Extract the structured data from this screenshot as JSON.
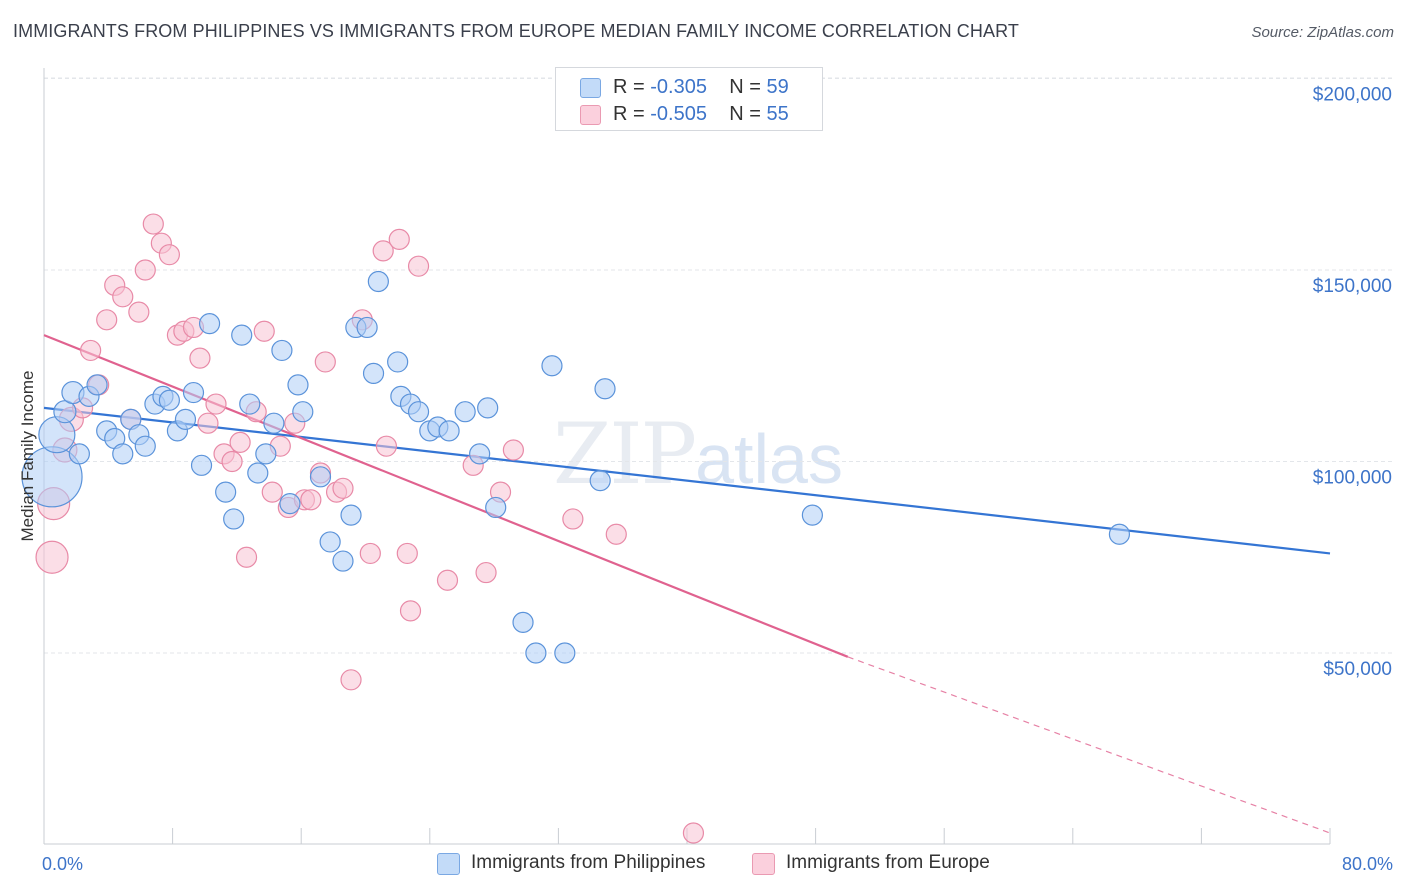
{
  "header": {
    "title": "IMMIGRANTS FROM PHILIPPINES VS IMMIGRANTS FROM EUROPE MEDIAN FAMILY INCOME CORRELATION CHART",
    "source": "Source: ZipAtlas.com"
  },
  "watermark": {
    "zip": "ZIP",
    "atlas": "atlas"
  },
  "legend": {
    "philippines": {
      "r_label": "R = ",
      "r": "-0.305",
      "n_label": "N = ",
      "n": "59"
    },
    "europe": {
      "r_label": "R = ",
      "r": "-0.505",
      "n_label": "N = ",
      "n": "55"
    }
  },
  "colors": {
    "blue_fill": "#aecdf5",
    "blue_stroke": "#5b93da",
    "blue_line": "#3475d4",
    "pink_fill": "#f8c3d3",
    "pink_stroke": "#e88aa7",
    "pink_line": "#e0628f",
    "axis_text": "#3d74c9",
    "grid": "#e3e6ea"
  },
  "chart_data": {
    "type": "scatter",
    "title": "IMMIGRANTS FROM PHILIPPINES VS IMMIGRANTS FROM EUROPE MEDIAN FAMILY INCOME CORRELATION CHART",
    "xlabel": "",
    "ylabel": "Median Family Income",
    "xlim": [
      0,
      80
    ],
    "ylim": [
      0,
      210000
    ],
    "x_tick_labels": [
      "0.0%",
      "80.0%"
    ],
    "y_ticks": [
      50000,
      100000,
      150000,
      200000
    ],
    "y_tick_labels": [
      "$50,000",
      "$100,000",
      "$150,000",
      "$200,000"
    ],
    "grid": "horizontal dashed",
    "legend_position": "top-center and bottom",
    "series": [
      {
        "name": "Immigrants from Philippines",
        "color": "#aecdf5",
        "trend": {
          "x": [
            0,
            80
          ],
          "y": [
            114000,
            76000
          ]
        },
        "points": [
          [
            0.5,
            96000,
            30
          ],
          [
            0.8,
            107000,
            18
          ],
          [
            1.3,
            113000,
            11
          ],
          [
            1.8,
            118000,
            11
          ],
          [
            2.2,
            102000,
            10
          ],
          [
            2.8,
            117000,
            10
          ],
          [
            3.3,
            120000,
            10
          ],
          [
            3.9,
            108000,
            10
          ],
          [
            4.4,
            106000,
            10
          ],
          [
            4.9,
            102000,
            10
          ],
          [
            5.4,
            111000,
            10
          ],
          [
            5.9,
            107000,
            10
          ],
          [
            6.3,
            104000,
            10
          ],
          [
            6.9,
            115000,
            10
          ],
          [
            7.4,
            117000,
            10
          ],
          [
            7.8,
            116000,
            10
          ],
          [
            8.3,
            108000,
            10
          ],
          [
            8.8,
            111000,
            10
          ],
          [
            9.3,
            118000,
            10
          ],
          [
            9.8,
            99000,
            10
          ],
          [
            10.3,
            136000,
            10
          ],
          [
            11.3,
            92000,
            10
          ],
          [
            11.8,
            85000,
            10
          ],
          [
            12.3,
            133000,
            10
          ],
          [
            12.8,
            115000,
            10
          ],
          [
            13.3,
            97000,
            10
          ],
          [
            13.8,
            102000,
            10
          ],
          [
            14.3,
            110000,
            10
          ],
          [
            14.8,
            129000,
            10
          ],
          [
            15.3,
            89000,
            10
          ],
          [
            15.8,
            120000,
            10
          ],
          [
            16.1,
            113000,
            10
          ],
          [
            17.2,
            96000,
            10
          ],
          [
            17.8,
            79000,
            10
          ],
          [
            18.6,
            74000,
            10
          ],
          [
            19.1,
            86000,
            10
          ],
          [
            19.4,
            135000,
            10
          ],
          [
            20.1,
            135000,
            10
          ],
          [
            20.5,
            123000,
            10
          ],
          [
            20.8,
            147000,
            10
          ],
          [
            22.0,
            126000,
            10
          ],
          [
            22.2,
            117000,
            10
          ],
          [
            22.8,
            115000,
            10
          ],
          [
            23.3,
            113000,
            10
          ],
          [
            24.0,
            108000,
            10
          ],
          [
            24.5,
            109000,
            10
          ],
          [
            25.2,
            108000,
            10
          ],
          [
            26.2,
            113000,
            10
          ],
          [
            27.1,
            102000,
            10
          ],
          [
            27.6,
            114000,
            10
          ],
          [
            28.1,
            88000,
            10
          ],
          [
            29.8,
            58000,
            10
          ],
          [
            30.6,
            50000,
            10
          ],
          [
            31.6,
            125000,
            10
          ],
          [
            32.4,
            50000,
            10
          ],
          [
            34.6,
            95000,
            10
          ],
          [
            34.9,
            119000,
            10
          ],
          [
            47.8,
            86000,
            10
          ],
          [
            66.9,
            81000,
            10
          ]
        ]
      },
      {
        "name": "Immigrants from Europe",
        "color": "#f8c3d3",
        "trend": {
          "x": [
            0,
            50
          ],
          "y": [
            133000,
            49000
          ]
        },
        "trend_extension": {
          "x": [
            50,
            80
          ],
          "y": [
            49000,
            3000
          ]
        },
        "points": [
          [
            0.6,
            89000,
            16
          ],
          [
            0.5,
            75000,
            16
          ],
          [
            1.3,
            103000,
            12
          ],
          [
            1.7,
            111000,
            12
          ],
          [
            2.4,
            114000,
            10
          ],
          [
            2.9,
            129000,
            10
          ],
          [
            3.4,
            120000,
            10
          ],
          [
            3.9,
            137000,
            10
          ],
          [
            4.4,
            146000,
            10
          ],
          [
            4.9,
            143000,
            10
          ],
          [
            5.4,
            111000,
            10
          ],
          [
            5.9,
            139000,
            10
          ],
          [
            6.3,
            150000,
            10
          ],
          [
            6.8,
            162000,
            10
          ],
          [
            7.3,
            157000,
            10
          ],
          [
            7.8,
            154000,
            10
          ],
          [
            8.3,
            133000,
            10
          ],
          [
            8.7,
            134000,
            10
          ],
          [
            9.3,
            135000,
            10
          ],
          [
            9.7,
            127000,
            10
          ],
          [
            10.2,
            110000,
            10
          ],
          [
            10.7,
            115000,
            10
          ],
          [
            11.2,
            102000,
            10
          ],
          [
            11.7,
            100000,
            10
          ],
          [
            12.2,
            105000,
            10
          ],
          [
            12.6,
            75000,
            10
          ],
          [
            13.2,
            113000,
            10
          ],
          [
            13.7,
            134000,
            10
          ],
          [
            14.2,
            92000,
            10
          ],
          [
            14.7,
            104000,
            10
          ],
          [
            15.2,
            88000,
            10
          ],
          [
            15.6,
            110000,
            10
          ],
          [
            16.2,
            90000,
            10
          ],
          [
            16.6,
            90000,
            10
          ],
          [
            17.2,
            97000,
            10
          ],
          [
            17.5,
            126000,
            10
          ],
          [
            18.2,
            92000,
            10
          ],
          [
            18.6,
            93000,
            10
          ],
          [
            19.1,
            43000,
            10
          ],
          [
            19.8,
            137000,
            10
          ],
          [
            20.3,
            76000,
            10
          ],
          [
            21.1,
            155000,
            10
          ],
          [
            21.3,
            104000,
            10
          ],
          [
            22.1,
            158000,
            10
          ],
          [
            22.6,
            76000,
            10
          ],
          [
            22.8,
            61000,
            10
          ],
          [
            23.3,
            151000,
            10
          ],
          [
            25.1,
            69000,
            10
          ],
          [
            26.7,
            99000,
            10
          ],
          [
            27.5,
            71000,
            10
          ],
          [
            28.4,
            92000,
            10
          ],
          [
            29.2,
            103000,
            10
          ],
          [
            32.9,
            85000,
            10
          ],
          [
            35.6,
            81000,
            10
          ],
          [
            40.4,
            3000,
            10
          ]
        ]
      }
    ]
  },
  "bottom_legend": {
    "philippines_label": "Immigrants from Philippines",
    "europe_label": "Immigrants from Europe"
  }
}
